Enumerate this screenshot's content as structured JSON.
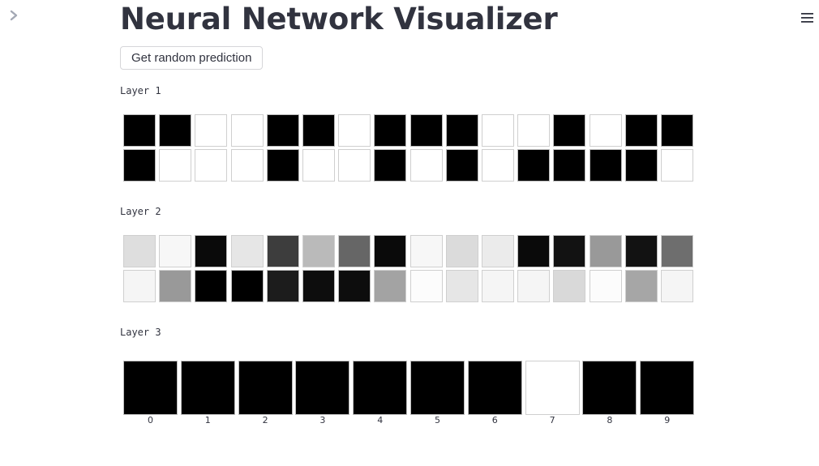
{
  "app": {
    "title": "Neural Network Visualizer",
    "button_label": "Get random prediction",
    "sidebar_toggle_icon": "chevron-right-icon",
    "menu_icon": "hamburger-menu-icon"
  },
  "layers": [
    {
      "label": "Layer 1",
      "rows": 2,
      "cols": 16,
      "activations": [
        [
          0,
          0,
          1,
          1,
          0,
          0,
          1,
          0,
          0,
          0,
          1,
          1,
          0,
          1,
          0,
          0
        ],
        [
          0,
          1,
          1,
          1,
          0,
          1,
          1,
          0,
          1,
          0,
          1,
          0,
          0,
          0,
          0,
          1
        ]
      ]
    },
    {
      "label": "Layer 2",
      "rows": 2,
      "cols": 16,
      "activations": [
        [
          0.87,
          0.97,
          0.04,
          0.9,
          0.24,
          0.73,
          0.4,
          0.04,
          0.97,
          0.86,
          0.92,
          0.04,
          0.07,
          0.6,
          0.07,
          0.43
        ],
        [
          0.96,
          0.6,
          0.0,
          0.0,
          0.11,
          0.05,
          0.05,
          0.64,
          0.99,
          0.9,
          0.96,
          0.96,
          0.85,
          0.99,
          0.65,
          0.96
        ]
      ]
    },
    {
      "label": "Layer 3",
      "rows": 1,
      "cols": 10,
      "activations": [
        [
          0,
          0,
          0,
          0,
          0,
          0,
          0,
          1,
          0,
          0
        ]
      ],
      "digit_labels": [
        "0",
        "1",
        "2",
        "3",
        "4",
        "5",
        "6",
        "7",
        "8",
        "9"
      ]
    }
  ]
}
